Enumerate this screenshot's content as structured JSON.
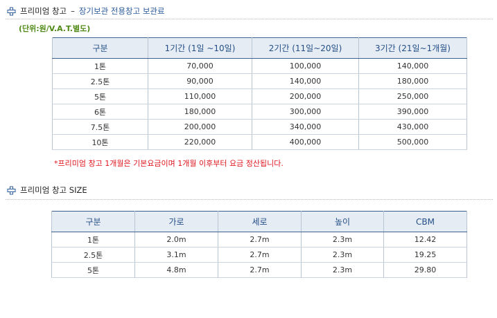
{
  "colors": {
    "accent": "#2a5a9c",
    "note_red": "#e0141e",
    "unit_green": "#4f8a16",
    "header_bg": "#e6ecf4"
  },
  "section1": {
    "icon": "plus-icon",
    "title": "프리미엄 창고",
    "dash": "–",
    "subtitle": "장기보관 전용창고 보관료"
  },
  "unit_note": "(단위:원/V.A.T.별도)",
  "price_table": {
    "headers": [
      "구분",
      "1기간 (1일 ~10일)",
      "2기간 (11일~20일)",
      "3기간 (21일~1개월)"
    ],
    "rows": [
      [
        "1톤",
        "70,000",
        "100,000",
        "140,000"
      ],
      [
        "2.5톤",
        "90,000",
        "140,000",
        "180,000"
      ],
      [
        "5톤",
        "110,000",
        "200,000",
        "250,000"
      ],
      [
        "6톤",
        "180,000",
        "300,000",
        "390,000"
      ],
      [
        "7.5톤",
        "200,000",
        "340,000",
        "430,000"
      ],
      [
        "10톤",
        "220,000",
        "400,000",
        "500,000"
      ]
    ]
  },
  "price_note": "*프리미엄 창고 1개월은 기본요금이며 1개월 이후부터 요금 정산됩니다.",
  "section2": {
    "icon": "plus-icon",
    "title": "프리미엄 창고 SIZE"
  },
  "size_table": {
    "headers": [
      "구분",
      "가로",
      "세로",
      "높이",
      "CBM"
    ],
    "rows": [
      [
        "1톤",
        "2.0m",
        "2.7m",
        "2.3m",
        "12.42"
      ],
      [
        "2.5톤",
        "3.1m",
        "2.7m",
        "2.3m",
        "19.25"
      ],
      [
        "5톤",
        "4.8m",
        "2.7m",
        "2.3m",
        "29.80"
      ]
    ]
  }
}
